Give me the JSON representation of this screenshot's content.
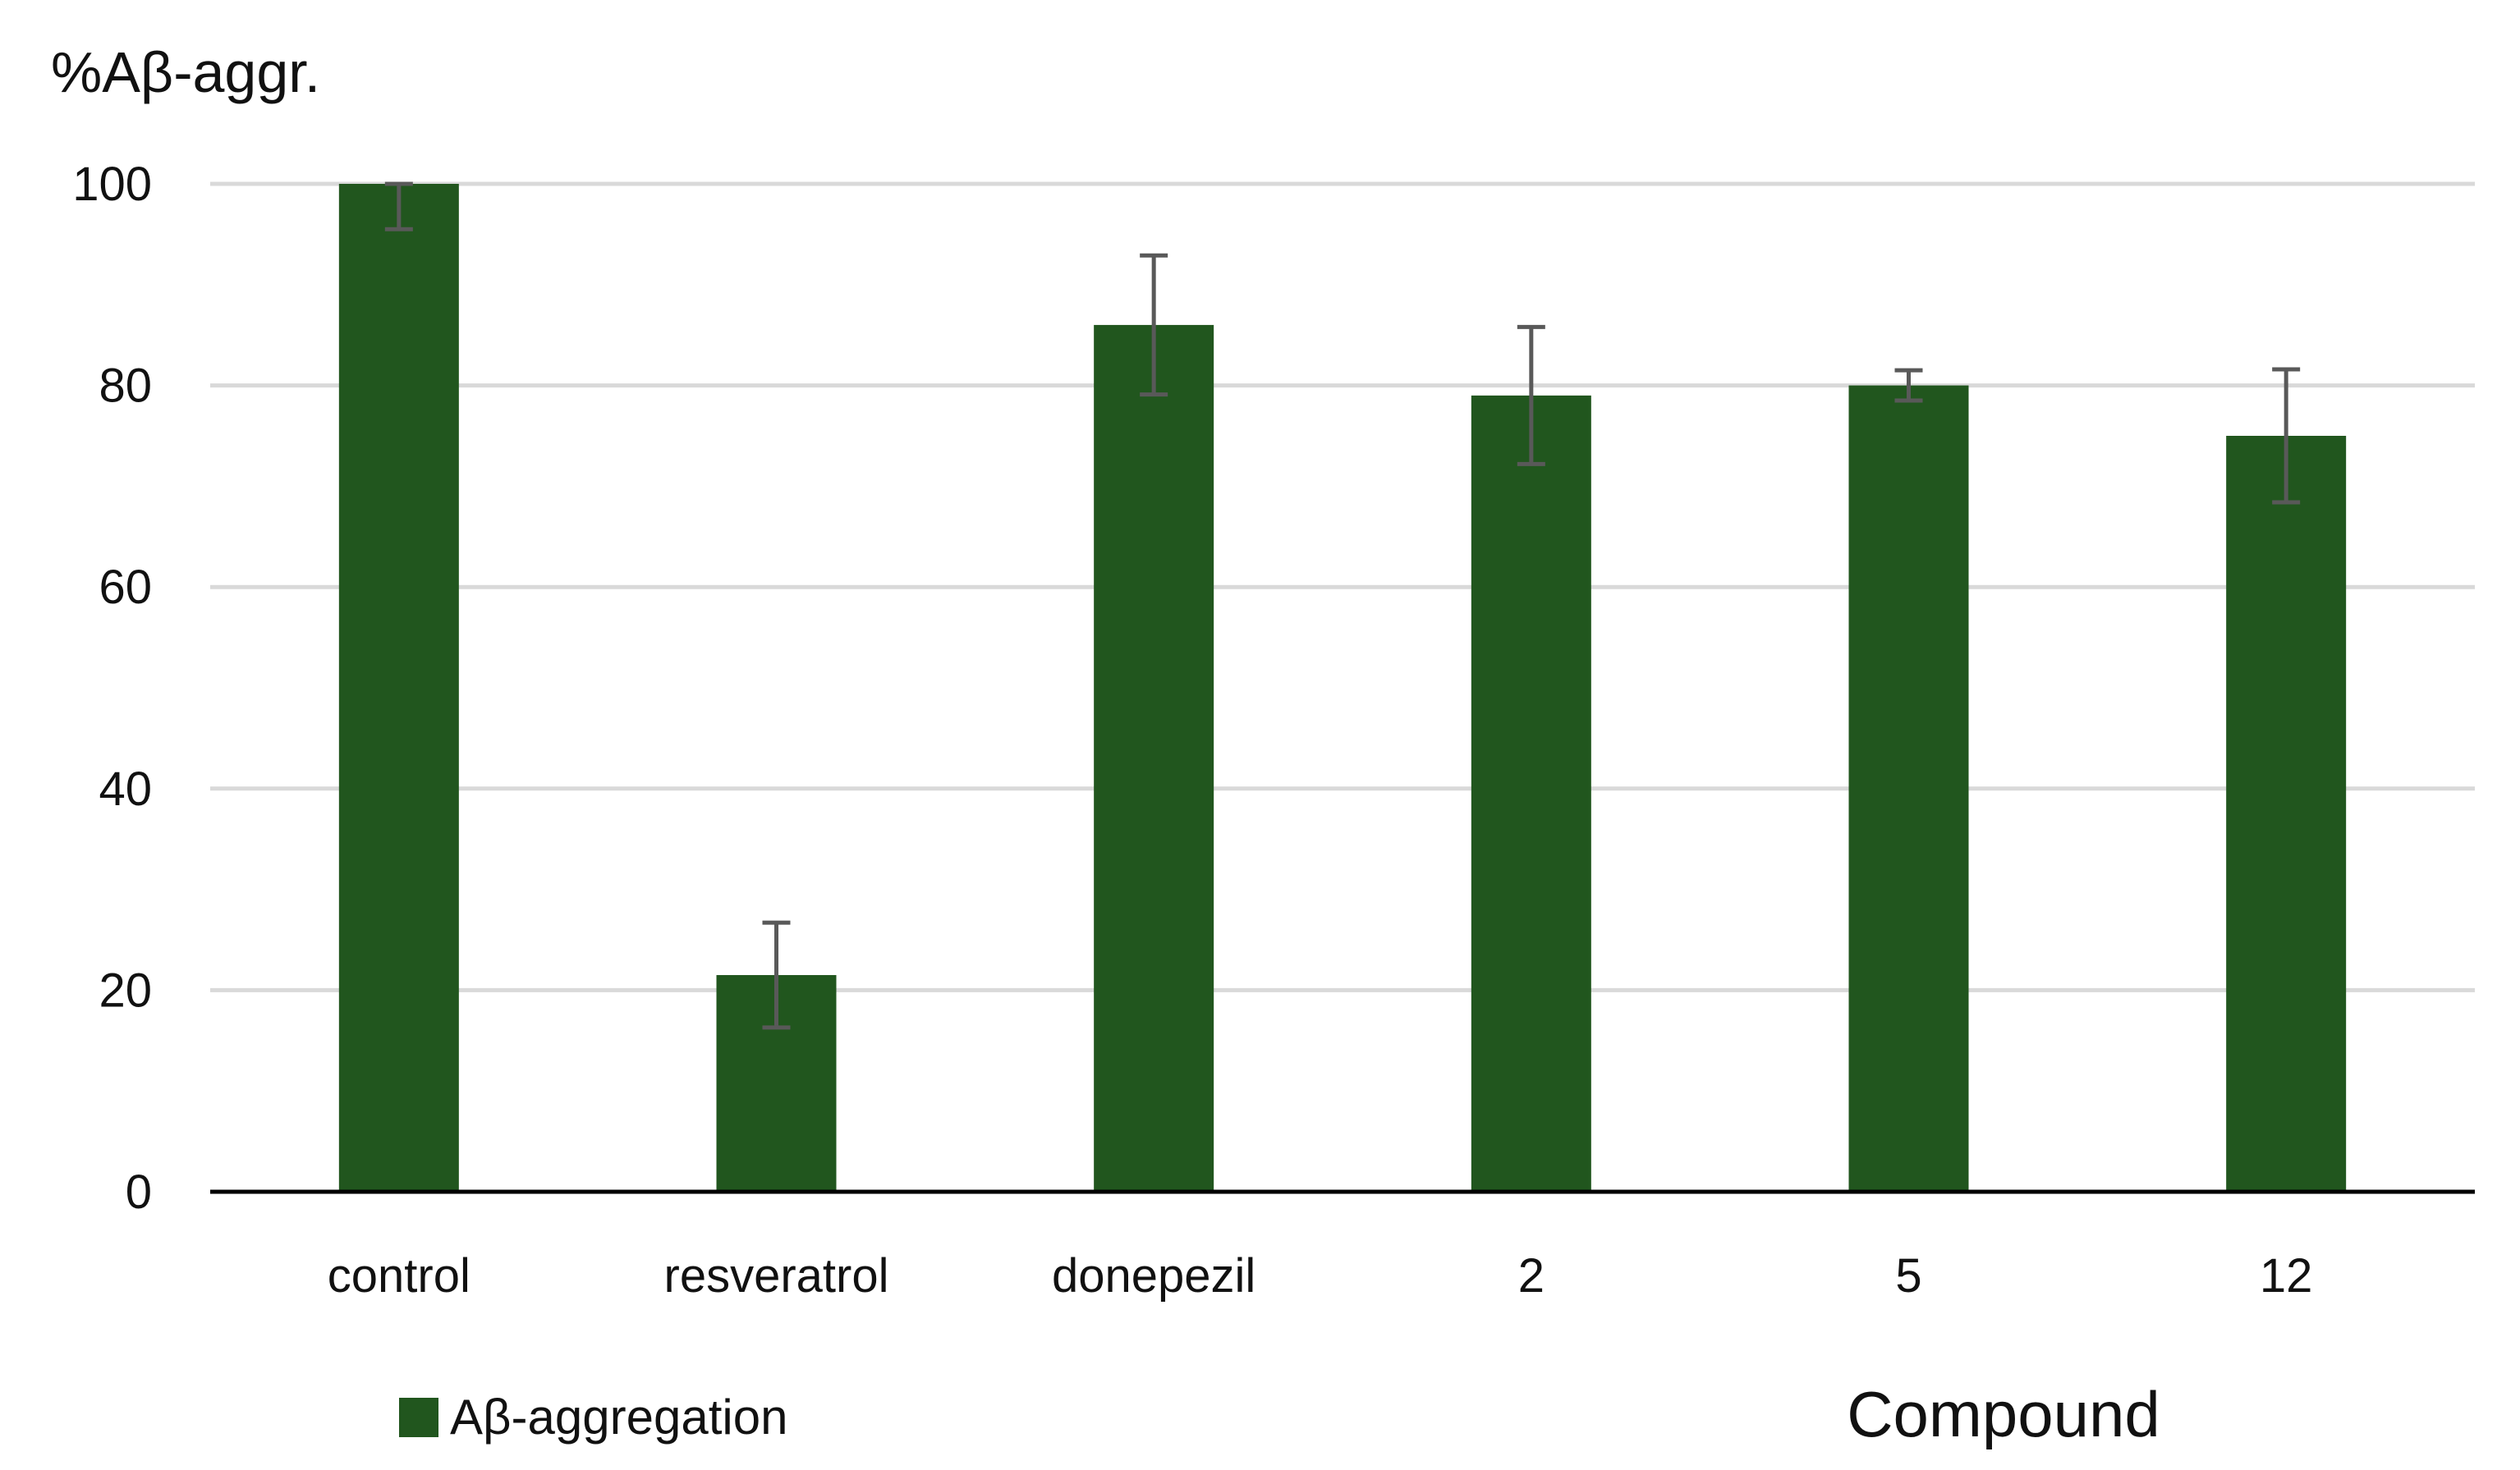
{
  "chart_data": {
    "type": "bar",
    "ylabel": "%Aβ-aggr.",
    "xlabel": "Compound",
    "categories": [
      "control",
      "resveratrol",
      "donepezil",
      "2",
      "5",
      "12"
    ],
    "series": [
      {
        "name": "Aβ-aggregation",
        "values": [
          100,
          21.5,
          86,
          79,
          80,
          75
        ],
        "errors": [
          4.5,
          5.2,
          6.9,
          6.8,
          1.5,
          6.6
        ]
      }
    ],
    "yticks": [
      "0",
      "20",
      "40",
      "60",
      "80",
      "100"
    ],
    "ylim": [
      0,
      100
    ],
    "grid": true,
    "legend_position": "bottom-left",
    "colors": {
      "bar": "#21561e",
      "error": "#595959",
      "grid": "#d9d9d9",
      "axis": "#000000"
    }
  }
}
